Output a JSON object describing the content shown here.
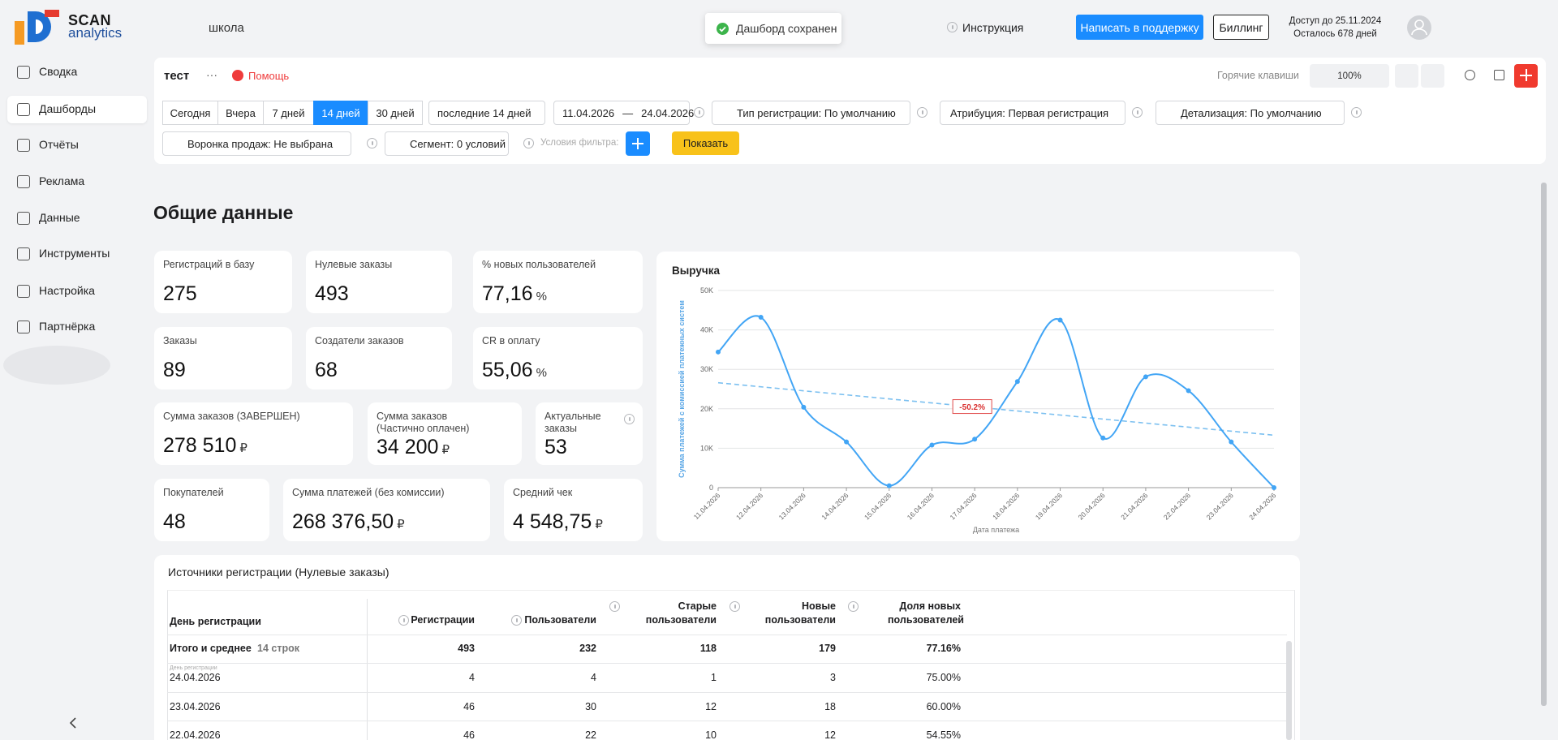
{
  "header": {
    "logo_top": "SCAN",
    "logo_bottom": "analytics",
    "project": "школа",
    "toast": "Дашборд сохранен",
    "instruction": "Инструкция",
    "support_button": "Написать в поддержку",
    "billing_button": "Биллинг",
    "access_until": "Доступ до 25.11.2024",
    "days_left": "Осталось 678 дней"
  },
  "sidebar": {
    "items": [
      "Сводка",
      "Дашборды",
      "Отчёты",
      "Реклама",
      "Данные",
      "Инструменты",
      "Настройка",
      "Партнёрка"
    ],
    "active": 1
  },
  "toolbar": {
    "dashboard_name": "тест",
    "menu": "···",
    "help": "Помощь",
    "hotkeys": "Горячие клавиши",
    "zoom": "100%",
    "periods": [
      "Сегодня",
      "Вчера",
      "7 дней",
      "14 дней",
      "30 дней"
    ],
    "active_period": 3,
    "period_select": "последние 14 дней",
    "date_from": "11.04.2026",
    "date_sep": "—",
    "date_to": "24.04.2026",
    "filters": [
      "Тип регистрации: По умолчанию",
      "Атрибуция: Первая регистрация",
      "Детализация: По умолчанию"
    ],
    "funnel": "Воронка продаж: Не выбрана",
    "segment": "Сегмент: 0 условий",
    "filter_conditions": "Условия фильтра:",
    "show_button": "Показать"
  },
  "section_title": "Общие данные",
  "kpis": [
    {
      "label": "Регистраций в базу",
      "value": "275"
    },
    {
      "label": "Нулевые заказы",
      "value": "493"
    },
    {
      "label": "% новых пользователей",
      "value": "77,16",
      "unit": "%"
    },
    {
      "label": "Заказы",
      "value": "89"
    },
    {
      "label": "Создатели заказов",
      "value": "68"
    },
    {
      "label": "CR в оплату",
      "value": "55,06",
      "unit": "%"
    },
    {
      "label": "Сумма заказов (ЗАВЕРШЕН)",
      "value": "278 510",
      "unit": "₽"
    },
    {
      "label": "Сумма заказов (Частично оплачен)",
      "value": "34 200",
      "unit": "₽"
    },
    {
      "label": "Актуальные заказы",
      "value": "53"
    },
    {
      "label": "Покупателей",
      "value": "48"
    },
    {
      "label": "Сумма платежей (без комиссии)",
      "value": "268 376,50",
      "unit": "₽"
    },
    {
      "label": "Средний чек",
      "value": "4 548,75",
      "unit": "₽"
    }
  ],
  "chart_data": {
    "type": "line",
    "title": "Выручка",
    "y_label": "Сумма платежей с комиссией платежных систем",
    "x_label": "Дата платежа",
    "categories": [
      "11.04.2026",
      "12.04.2026",
      "13.04.2026",
      "14.04.2026",
      "15.04.2026",
      "16.04.2026",
      "17.04.2026",
      "18.04.2026",
      "19.04.2026",
      "20.04.2026",
      "21.04.2026",
      "22.04.2026",
      "23.04.2026",
      "24.04.2026"
    ],
    "values": [
      34400,
      43200,
      20400,
      11600,
      500,
      10800,
      12300,
      26900,
      42500,
      12600,
      28100,
      24600,
      11600,
      0
    ],
    "color": "#42a5f5",
    "trend": [
      26600,
      13300
    ],
    "trend_color": "#7cc0f0",
    "trend_label": "-50.2%",
    "ylim": [
      0,
      50000
    ],
    "yticks": [
      0,
      {
        "value": 10000,
        "label": "10K"
      },
      {
        "value": 20000,
        "label": "20K"
      },
      {
        "value": 30000,
        "label": "30K"
      },
      {
        "value": 40000,
        "label": "40K"
      },
      {
        "value": 50000,
        "label": "50K"
      }
    ],
    "grid": true
  },
  "table": {
    "title": "Источники регистрации (Нулевые заказы)",
    "columns": [
      "День регистрации",
      "Регистрации",
      "Пользователи",
      "Старые пользователи",
      "Новые пользователи",
      "Доля новых пользователей"
    ],
    "total": {
      "label": "Итого и среднее",
      "rows_count": "14 строк",
      "cells": [
        "493",
        "232",
        "118",
        "179",
        "77.16%"
      ]
    },
    "row_caption": "День регистрации",
    "rows": [
      [
        "24.04.2026",
        "4",
        "4",
        "1",
        "3",
        "75.00%"
      ],
      [
        "23.04.2026",
        "46",
        "30",
        "12",
        "18",
        "60.00%"
      ],
      [
        "22.04.2026",
        "46",
        "22",
        "10",
        "12",
        "54.55%"
      ]
    ]
  }
}
